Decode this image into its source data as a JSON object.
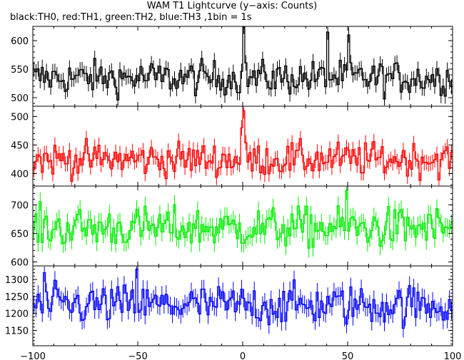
{
  "title": "WAM T1 Lightcurve (y−axis: Counts)",
  "subtitle": "black:TH0, red:TH1, green:TH2, blue:TH3 ,1bin = 1s",
  "chart_data": {
    "type": "line",
    "style": "stacked panels, histogram step lines with vertical error bars",
    "xlim": [
      -100,
      100
    ],
    "x_ticks": [
      -100,
      -50,
      0,
      50,
      100
    ],
    "panels": [
      {
        "name": "TH0",
        "color": "#000000",
        "ylim": [
          485,
          625
        ],
        "y_ticks": [
          500,
          550,
          600
        ],
        "approx_mean": 535,
        "approx_scatter": 15,
        "notable_peaks": [
          [
            0,
            625
          ],
          [
            40,
            615
          ],
          [
            50,
            610
          ]
        ]
      },
      {
        "name": "TH1",
        "color": "#ff0000",
        "ylim": [
          378,
          518
        ],
        "y_ticks": [
          400,
          450,
          500
        ],
        "approx_mean": 425,
        "approx_scatter": 15,
        "notable_peaks": [
          [
            0,
            510
          ],
          [
            -1,
            480
          ]
        ]
      },
      {
        "name": "TH2",
        "color": "#00ee00",
        "ylim": [
          593,
          733
        ],
        "y_ticks": [
          600,
          650,
          700
        ],
        "approx_mean": 660,
        "approx_scatter": 18,
        "notable_peaks": [
          [
            49,
            725
          ]
        ]
      },
      {
        "name": "TH3",
        "color": "#0000ff",
        "ylim": [
          1105,
          1340
        ],
        "y_ticks": [
          1150,
          1200,
          1250,
          1300
        ],
        "approx_mean": 1225,
        "approx_scatter": 30,
        "notable_peaks": [
          [
            -51,
            1330
          ],
          [
            -95,
            1320
          ]
        ]
      }
    ]
  }
}
